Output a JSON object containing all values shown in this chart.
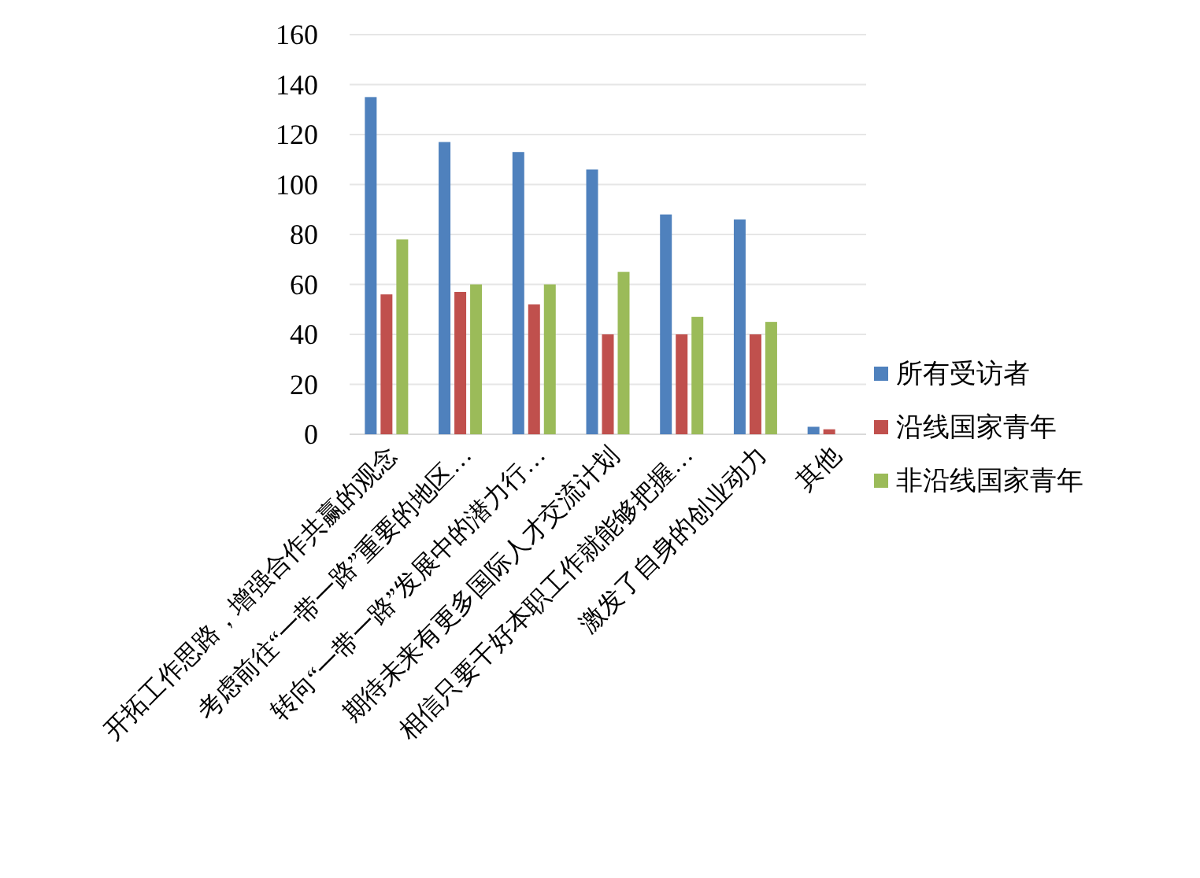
{
  "chart_data": {
    "type": "bar",
    "categories": [
      "开拓工作思路，增强合作共赢的观念",
      "考虑前往“一带一路”重要的地区…",
      "转向“一带一路”发展中的潜力行…",
      "期待未来有更多国际人才交流计划",
      "相信只要干好本职工作就能够把握…",
      "激发了自身的创业动力",
      "其他"
    ],
    "series": [
      {
        "name": "所有受访者",
        "color": "#4f81bd",
        "values": [
          135,
          117,
          113,
          106,
          88,
          86,
          3
        ]
      },
      {
        "name": "沿线国家青年",
        "color": "#c0504d",
        "values": [
          56,
          57,
          52,
          40,
          40,
          40,
          2
        ]
      },
      {
        "name": "非沿线国家青年",
        "color": "#9bbb59",
        "values": [
          78,
          60,
          60,
          65,
          47,
          45,
          0
        ]
      }
    ],
    "ylim": [
      0,
      160
    ],
    "yticks": [
      0,
      20,
      40,
      60,
      80,
      100,
      120,
      140,
      160
    ],
    "grid": "y",
    "legend": "right"
  }
}
